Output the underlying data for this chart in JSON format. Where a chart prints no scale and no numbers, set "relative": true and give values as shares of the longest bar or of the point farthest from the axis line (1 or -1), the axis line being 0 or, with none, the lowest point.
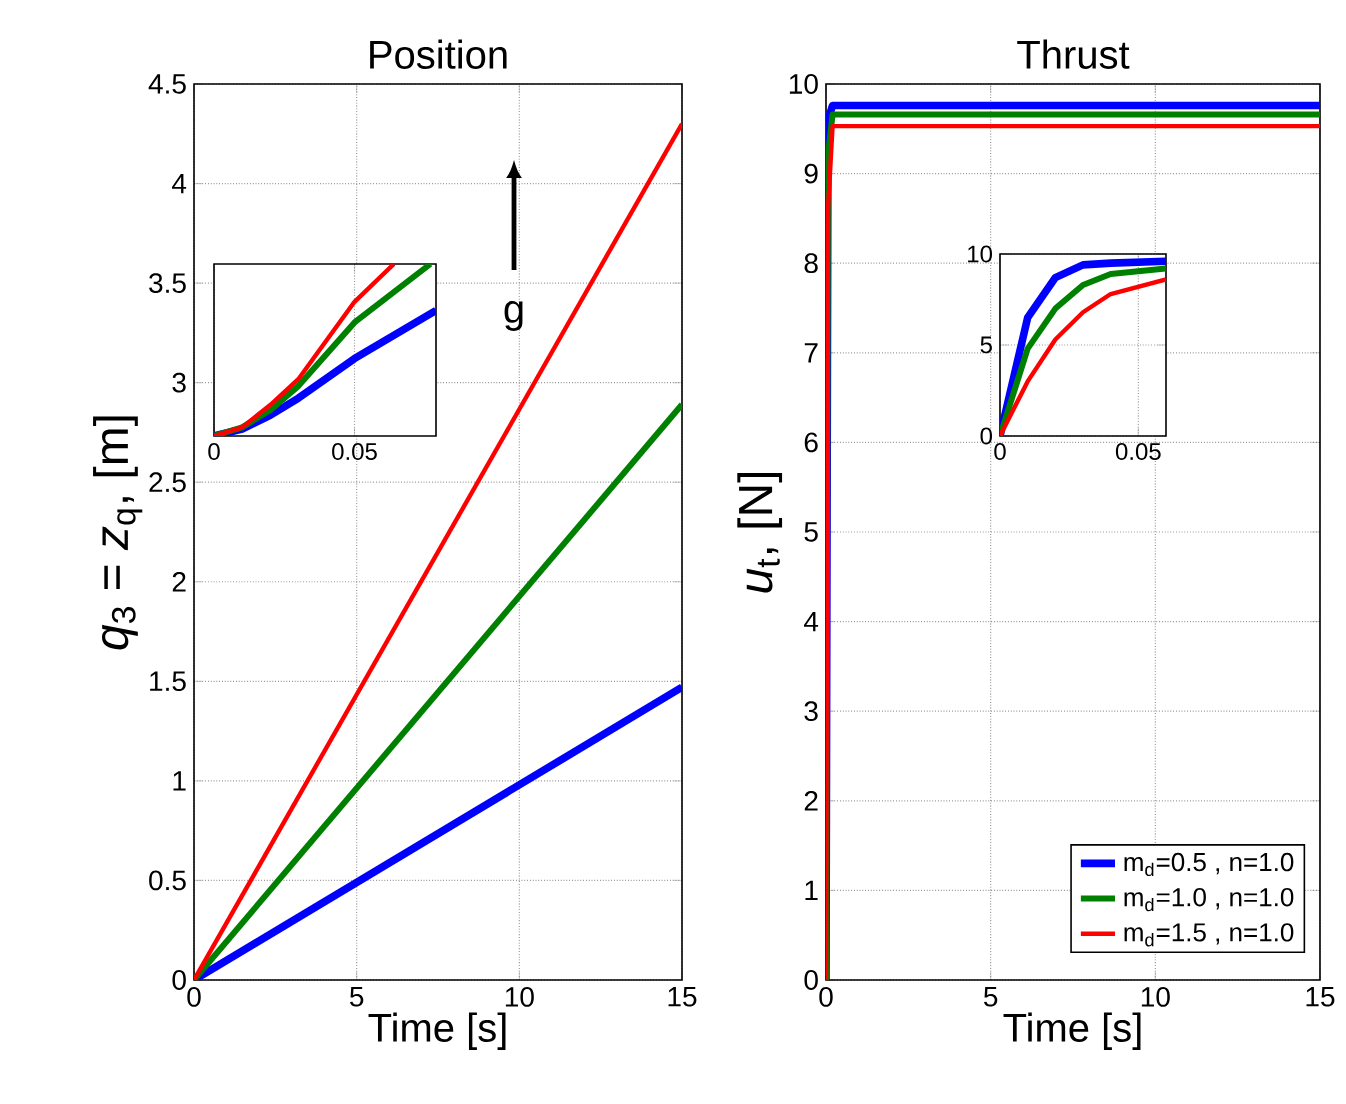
{
  "chart_data": [
    {
      "type": "line",
      "title": "Position",
      "xlabel": "Time [s]",
      "ylabel": "*q*$_{3}$ = *z*$_{q}$, [m]",
      "xlim": [
        0,
        15
      ],
      "ylim": [
        0,
        4.5
      ],
      "xticks": [
        0,
        5,
        10,
        15
      ],
      "yticks": [
        0,
        0.5,
        1,
        1.5,
        2,
        2.5,
        3,
        3.5,
        4,
        4.5
      ],
      "grid": true,
      "annotations": [
        "g"
      ],
      "series": [
        {
          "color": "#0000ff",
          "x": [
            0,
            15
          ],
          "values": [
            0,
            1.47
          ]
        },
        {
          "color": "#008000",
          "x": [
            0,
            15
          ],
          "values": [
            0,
            2.89
          ]
        },
        {
          "color": "#ff0000",
          "x": [
            0,
            15
          ],
          "values": [
            0,
            4.3
          ]
        }
      ]
    },
    {
      "type": "line",
      "title": "Thrust",
      "xlabel": "Time [s]",
      "ylabel": "*u*$_{t}$, [N]",
      "xlim": [
        0,
        15
      ],
      "ylim": [
        0,
        10
      ],
      "xticks": [
        0,
        5,
        10,
        15
      ],
      "yticks": [
        0,
        1,
        2,
        3,
        4,
        5,
        6,
        7,
        8,
        9,
        10
      ],
      "grid": true,
      "legend": "bottom right",
      "series": [
        {
          "name": "m$_{d}$=0.5 , n=1.0",
          "color": "#0000ff",
          "x": [
            0,
            0.06,
            0.2,
            15
          ],
          "values": [
            0,
            9.6,
            9.76,
            9.76
          ]
        },
        {
          "name": "m$_{d}$=1.0 , n=1.0",
          "color": "#008000",
          "x": [
            0,
            0.06,
            0.2,
            15
          ],
          "values": [
            0,
            9.2,
            9.66,
            9.66
          ]
        },
        {
          "name": "m$_{d}$=1.5 , n=1.0",
          "color": "#ff0000",
          "x": [
            0,
            0.06,
            0.2,
            15
          ],
          "values": [
            0,
            8.6,
            9.53,
            9.53
          ]
        }
      ]
    },
    {
      "type": "line",
      "relative": true,
      "tick_labels": "x",
      "xlim": [
        0,
        0.079
      ],
      "xticks": [
        0,
        0.05
      ],
      "grid": "x",
      "series": [
        {
          "color": "#0000ff",
          "x": [
            0,
            0.01,
            0.02,
            0.03,
            0.05,
            0.079
          ],
          "values": [
            0,
            0.04,
            0.12,
            0.22,
            0.45,
            0.73
          ]
        },
        {
          "color": "#008000",
          "x": [
            0,
            0.01,
            0.02,
            0.03,
            0.05,
            0.077
          ],
          "values": [
            0,
            0.05,
            0.15,
            0.29,
            0.66,
            1
          ]
        },
        {
          "color": "#ff0000",
          "x": [
            0,
            0.01,
            0.02,
            0.03,
            0.05,
            0.064
          ],
          "values": [
            0,
            0.05,
            0.18,
            0.33,
            0.78,
            1
          ]
        }
      ]
    },
    {
      "type": "line",
      "xlim": [
        0,
        0.06
      ],
      "ylim": [
        0,
        10
      ],
      "xticks": [
        0,
        0.05
      ],
      "yticks": [
        0,
        5,
        10
      ],
      "grid": true,
      "series": [
        {
          "color": "#0000ff",
          "x": [
            0,
            0.01,
            0.02,
            0.03,
            0.04,
            0.06
          ],
          "values": [
            0,
            6.5,
            8.7,
            9.4,
            9.5,
            9.6
          ]
        },
        {
          "color": "#008000",
          "x": [
            0,
            0.01,
            0.02,
            0.03,
            0.04,
            0.06
          ],
          "values": [
            0,
            4.8,
            7.0,
            8.3,
            8.9,
            9.2
          ]
        },
        {
          "color": "#ff0000",
          "x": [
            0,
            0.01,
            0.02,
            0.03,
            0.04,
            0.06
          ],
          "values": [
            0,
            3.0,
            5.3,
            6.8,
            7.8,
            8.6
          ]
        }
      ]
    }
  ]
}
